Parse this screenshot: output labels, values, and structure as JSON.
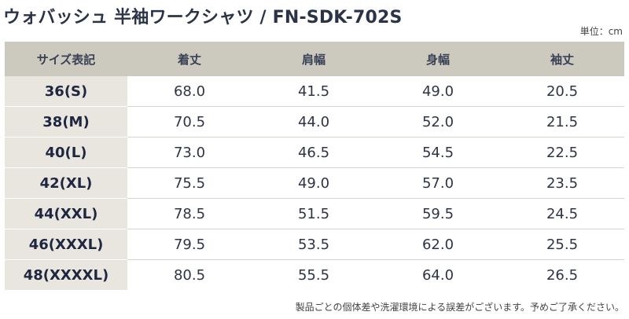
{
  "title": "ウォバッシュ 半袖ワークシャツ / FN-SDK-702S",
  "unit": "単位：cm",
  "table": {
    "headers": [
      "サイズ表記",
      "着丈",
      "肩幅",
      "身幅",
      "袖丈"
    ],
    "rows": [
      [
        "36(S)",
        "68.0",
        "41.5",
        "49.0",
        "20.5"
      ],
      [
        "38(M)",
        "70.5",
        "44.0",
        "52.0",
        "21.5"
      ],
      [
        "40(L)",
        "73.0",
        "46.5",
        "54.5",
        "22.5"
      ],
      [
        "42(XL)",
        "75.5",
        "49.0",
        "57.0",
        "23.5"
      ],
      [
        "44(XXL)",
        "78.5",
        "51.5",
        "59.5",
        "24.5"
      ],
      [
        "46(XXXL)",
        "79.5",
        "53.5",
        "62.0",
        "25.5"
      ],
      [
        "48(XXXXL)",
        "80.5",
        "55.5",
        "64.0",
        "26.5"
      ]
    ]
  },
  "note": "製品ごとの個体差や洗濯環境による誤差がございます。予めご了承ください。"
}
